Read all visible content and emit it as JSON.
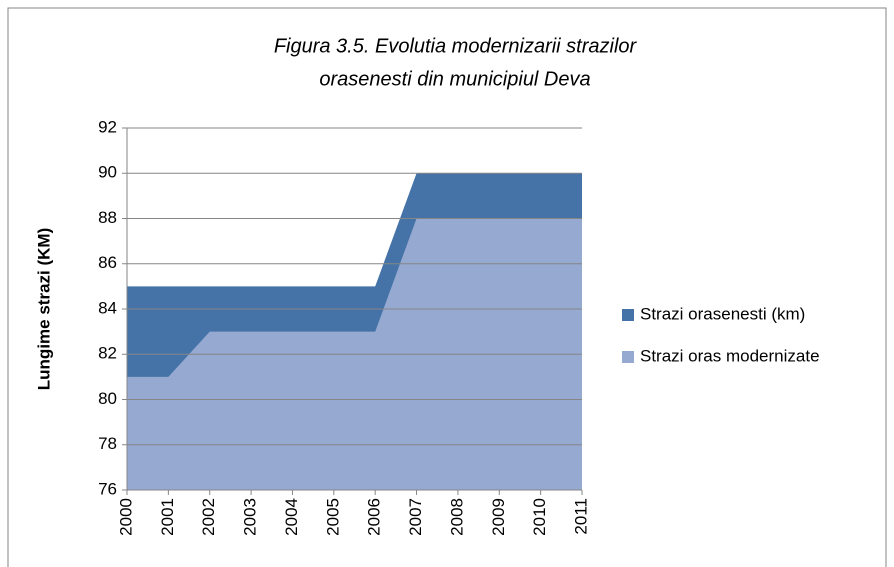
{
  "chart_data": {
    "type": "area",
    "title": [
      "Figura 3.5. Evolutia modernizarii strazilor",
      "orasenesti din municipiul Deva"
    ],
    "y_label": "Lungime strazi (KM)",
    "categories": [
      "2000",
      "2001",
      "2002",
      "2003",
      "2004",
      "2005",
      "2006",
      "2007",
      "2008",
      "2009",
      "2010",
      "2011"
    ],
    "series": [
      {
        "name": "Strazi orasenesti (km)",
        "color": "#4573a7",
        "values": [
          85,
          85,
          85,
          85,
          85,
          85,
          85,
          90,
          90,
          90,
          90,
          90
        ]
      },
      {
        "name": "Strazi oras modernizate",
        "color": "#95a9d1",
        "values": [
          81,
          81,
          83,
          83,
          83,
          83,
          83,
          88,
          88,
          88,
          88,
          88
        ]
      }
    ],
    "ylim": [
      76,
      92
    ],
    "yticks": [
      76,
      78,
      80,
      82,
      84,
      86,
      88,
      90,
      92
    ],
    "grid": true,
    "legend": "right"
  }
}
